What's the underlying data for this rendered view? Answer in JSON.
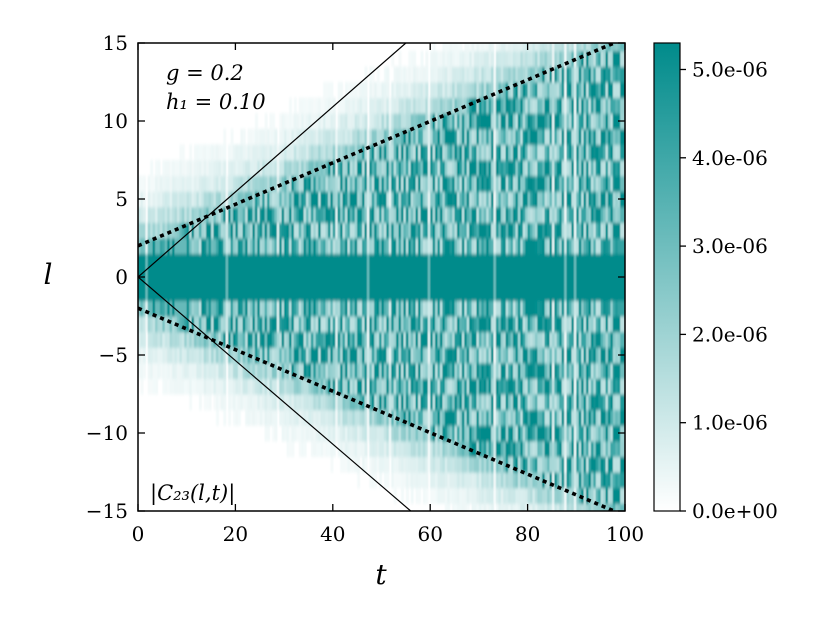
{
  "chart_data": {
    "type": "heatmap",
    "title": "",
    "xlabel": "t",
    "ylabel": "l",
    "xlim": [
      0,
      100
    ],
    "ylim": [
      -15,
      15
    ],
    "xticks": [
      0,
      20,
      40,
      60,
      80,
      100
    ],
    "yticks": [
      15,
      10,
      5,
      0,
      -5,
      -10,
      -15
    ],
    "xtick_labels": [
      "0",
      "20",
      "40",
      "60",
      "80",
      "100"
    ],
    "ytick_labels": [
      "15",
      "10",
      "5",
      "0",
      "−5",
      "−10",
      "−15"
    ],
    "annotations": {
      "g": "g = 0.2",
      "h1": "h₁ = 0.10",
      "quantity": "|C₂₃(l,t)|"
    },
    "colorbar": {
      "min": 0,
      "max": 5.3e-06,
      "ticks": [
        0,
        1e-06,
        2e-06,
        3e-06,
        4e-06,
        5e-06
      ],
      "tick_labels": [
        "0.0e+00",
        "1.0e-06",
        "2.0e-06",
        "3.0e-06",
        "4.0e-06",
        "5.0e-06"
      ],
      "colormap": [
        "#ffffff",
        "#008b8b"
      ]
    },
    "lines": [
      {
        "name": "",
        "style": "solid",
        "x": [
          0,
          56
        ],
        "y": [
          0,
          -15
        ]
      },
      {
        "name": "",
        "style": "solid",
        "x": [
          0,
          55
        ],
        "y": [
          0,
          15
        ]
      },
      {
        "name": "",
        "style": "dotted",
        "x": [
          0,
          100
        ],
        "y": [
          2,
          15.3
        ]
      },
      {
        "name": "",
        "style": "dotted",
        "x": [
          0,
          100
        ],
        "y": [
          -2,
          -15.3
        ]
      }
    ],
    "grid": false,
    "legend": "none"
  }
}
